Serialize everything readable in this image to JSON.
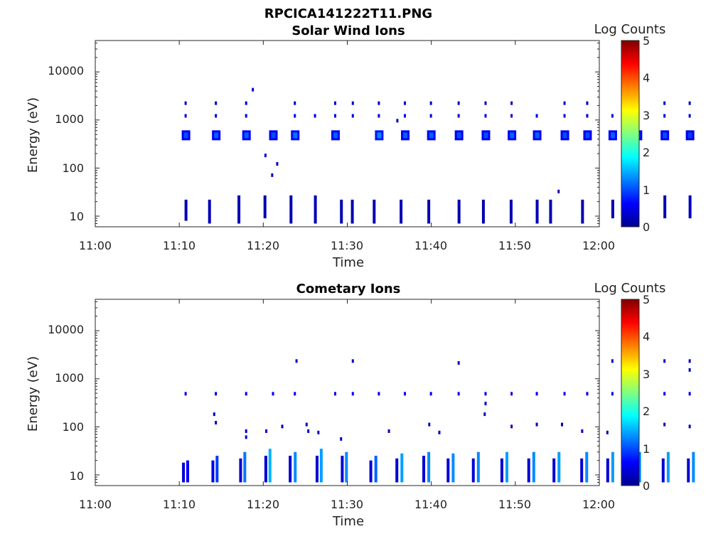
{
  "figure_title": "RPCICA141222T11.PNG",
  "colors": {
    "colormap": [
      "#00008f",
      "#0000ff",
      "#0080ff",
      "#00ffff",
      "#80ff80",
      "#ffff00",
      "#ff8000",
      "#ff0000",
      "#800000"
    ]
  },
  "chart_data": [
    {
      "type": "heatmap",
      "title": "Solar Wind Ions",
      "xlabel": "Time",
      "ylabel": "Energy (eV)",
      "x_ticks": [
        "11:00",
        "11:10",
        "11:20",
        "11:30",
        "11:40",
        "11:50",
        "12:00"
      ],
      "y_ticks": [
        "10",
        "100",
        "1000",
        "10000"
      ],
      "y_scale": "log",
      "y_range_eV": [
        6,
        45000
      ],
      "x_range": [
        "11:00",
        "12:00"
      ],
      "colorbar": {
        "label": "Log Counts",
        "ticks": [
          "0",
          "1",
          "2",
          "3",
          "4",
          "5"
        ],
        "range": [
          0,
          5
        ]
      },
      "blobs": [
        {
          "t": 10.8,
          "e": 480,
          "v": 1.0
        },
        {
          "t": 14.4,
          "e": 480,
          "v": 1.1
        },
        {
          "t": 18.0,
          "e": 480,
          "v": 1.1
        },
        {
          "t": 21.2,
          "e": 480,
          "v": 1.0
        },
        {
          "t": 23.8,
          "e": 480,
          "v": 1.2
        },
        {
          "t": 28.6,
          "e": 480,
          "v": 1.1
        },
        {
          "t": 33.8,
          "e": 480,
          "v": 1.3
        },
        {
          "t": 36.9,
          "e": 480,
          "v": 1.1
        },
        {
          "t": 40.0,
          "e": 480,
          "v": 1.1
        },
        {
          "t": 43.3,
          "e": 480,
          "v": 1.0
        },
        {
          "t": 46.5,
          "e": 480,
          "v": 1.0
        },
        {
          "t": 49.6,
          "e": 480,
          "v": 1.1
        },
        {
          "t": 52.6,
          "e": 480,
          "v": 1.1
        },
        {
          "t": 55.9,
          "e": 480,
          "v": 1.0
        },
        {
          "t": 58.6,
          "e": 480,
          "v": 1.0
        },
        {
          "t": 61.6,
          "e": 480,
          "v": 1.1
        },
        {
          "t": 64.6,
          "e": 480,
          "v": 1.0
        },
        {
          "t": 67.8,
          "e": 480,
          "v": 1.0
        },
        {
          "t": 70.8,
          "e": 480,
          "v": 0.9
        }
      ],
      "dots": [
        {
          "t": 10.8,
          "e": 1200,
          "v": 0.5
        },
        {
          "t": 14.4,
          "e": 1200,
          "v": 0.4
        },
        {
          "t": 18.0,
          "e": 1200,
          "v": 0.4
        },
        {
          "t": 23.8,
          "e": 1200,
          "v": 0.5
        },
        {
          "t": 26.2,
          "e": 1200,
          "v": 0.4
        },
        {
          "t": 28.6,
          "e": 1200,
          "v": 0.5
        },
        {
          "t": 30.7,
          "e": 1200,
          "v": 0.4
        },
        {
          "t": 33.8,
          "e": 1200,
          "v": 0.5
        },
        {
          "t": 36.9,
          "e": 1200,
          "v": 0.5
        },
        {
          "t": 40.0,
          "e": 1200,
          "v": 0.4
        },
        {
          "t": 43.3,
          "e": 1200,
          "v": 0.4
        },
        {
          "t": 46.5,
          "e": 1200,
          "v": 0.4
        },
        {
          "t": 49.6,
          "e": 1200,
          "v": 0.4
        },
        {
          "t": 52.6,
          "e": 1200,
          "v": 0.4
        },
        {
          "t": 55.9,
          "e": 1200,
          "v": 0.4
        },
        {
          "t": 58.6,
          "e": 1200,
          "v": 0.4
        },
        {
          "t": 61.6,
          "e": 1200,
          "v": 0.4
        },
        {
          "t": 64.6,
          "e": 1200,
          "v": 0.4
        },
        {
          "t": 67.8,
          "e": 1200,
          "v": 0.4
        },
        {
          "t": 70.8,
          "e": 1200,
          "v": 0.4
        },
        {
          "t": 10.8,
          "e": 2200,
          "v": 0.3
        },
        {
          "t": 14.4,
          "e": 2200,
          "v": 0.3
        },
        {
          "t": 18.0,
          "e": 2200,
          "v": 0.3
        },
        {
          "t": 23.8,
          "e": 2200,
          "v": 0.3
        },
        {
          "t": 28.6,
          "e": 2200,
          "v": 0.3
        },
        {
          "t": 30.7,
          "e": 2200,
          "v": 0.3
        },
        {
          "t": 33.8,
          "e": 2200,
          "v": 0.3
        },
        {
          "t": 36.9,
          "e": 2200,
          "v": 0.3
        },
        {
          "t": 40.0,
          "e": 2200,
          "v": 0.3
        },
        {
          "t": 43.3,
          "e": 2200,
          "v": 0.3
        },
        {
          "t": 46.5,
          "e": 2200,
          "v": 0.3
        },
        {
          "t": 49.6,
          "e": 2200,
          "v": 0.3
        },
        {
          "t": 55.9,
          "e": 2200,
          "v": 0.3
        },
        {
          "t": 58.6,
          "e": 2200,
          "v": 0.3
        },
        {
          "t": 64.6,
          "e": 2200,
          "v": 0.3
        },
        {
          "t": 67.8,
          "e": 2200,
          "v": 0.3
        },
        {
          "t": 70.8,
          "e": 2200,
          "v": 0.3
        },
        {
          "t": 18.8,
          "e": 4200,
          "v": 0.3
        },
        {
          "t": 20.3,
          "e": 180,
          "v": 0.3
        },
        {
          "t": 21.7,
          "e": 120,
          "v": 0.3
        },
        {
          "t": 21.1,
          "e": 70,
          "v": 0.3
        },
        {
          "t": 55.2,
          "e": 32,
          "v": 0.3
        },
        {
          "t": 36.0,
          "e": 950,
          "v": 0.3
        }
      ],
      "bars": [
        {
          "t": 10.8,
          "e1": 8,
          "e2": 22,
          "v": 0.2
        },
        {
          "t": 13.6,
          "e1": 7,
          "e2": 22,
          "v": 0.2
        },
        {
          "t": 17.1,
          "e1": 7,
          "e2": 27,
          "v": 0.2
        },
        {
          "t": 20.2,
          "e1": 9,
          "e2": 27,
          "v": 0.2
        },
        {
          "t": 23.3,
          "e1": 7,
          "e2": 27,
          "v": 0.2
        },
        {
          "t": 26.2,
          "e1": 7,
          "e2": 27,
          "v": 0.2
        },
        {
          "t": 29.3,
          "e1": 7,
          "e2": 22,
          "v": 0.2
        },
        {
          "t": 30.6,
          "e1": 7,
          "e2": 22,
          "v": 0.2
        },
        {
          "t": 33.2,
          "e1": 7,
          "e2": 22,
          "v": 0.2
        },
        {
          "t": 36.4,
          "e1": 7,
          "e2": 22,
          "v": 0.2
        },
        {
          "t": 39.7,
          "e1": 7,
          "e2": 22,
          "v": 0.2
        },
        {
          "t": 43.3,
          "e1": 7,
          "e2": 22,
          "v": 0.2
        },
        {
          "t": 46.2,
          "e1": 7,
          "e2": 22,
          "v": 0.2
        },
        {
          "t": 49.5,
          "e1": 7,
          "e2": 22,
          "v": 0.2
        },
        {
          "t": 52.6,
          "e1": 7,
          "e2": 22,
          "v": 0.2
        },
        {
          "t": 54.2,
          "e1": 7,
          "e2": 22,
          "v": 0.2
        },
        {
          "t": 58.0,
          "e1": 7,
          "e2": 22,
          "v": 0.2
        },
        {
          "t": 61.6,
          "e1": 9,
          "e2": 22,
          "v": 0.2
        },
        {
          "t": 64.6,
          "e1": 8,
          "e2": 27,
          "v": 0.2
        },
        {
          "t": 67.8,
          "e1": 9,
          "e2": 27,
          "v": 0.2
        },
        {
          "t": 70.8,
          "e1": 9,
          "e2": 27,
          "v": 0.3
        }
      ]
    },
    {
      "type": "heatmap",
      "title": "Cometary Ions",
      "xlabel": "Time",
      "ylabel": "Energy (eV)",
      "x_ticks": [
        "11:00",
        "11:10",
        "11:20",
        "11:30",
        "11:40",
        "11:50",
        "12:00"
      ],
      "y_ticks": [
        "10",
        "100",
        "1000",
        "10000"
      ],
      "y_scale": "log",
      "y_range_eV": [
        6,
        45000
      ],
      "x_range": [
        "11:00",
        "12:00"
      ],
      "colorbar": {
        "label": "Log Counts",
        "ticks": [
          "0",
          "1",
          "2",
          "3",
          "4",
          "5"
        ],
        "range": [
          0,
          5
        ]
      },
      "blobs": [],
      "dots": [
        {
          "t": 10.8,
          "e": 480,
          "v": 0.5
        },
        {
          "t": 14.4,
          "e": 480,
          "v": 0.5
        },
        {
          "t": 18.0,
          "e": 480,
          "v": 0.5
        },
        {
          "t": 21.2,
          "e": 480,
          "v": 0.5
        },
        {
          "t": 23.8,
          "e": 480,
          "v": 0.5
        },
        {
          "t": 28.6,
          "e": 480,
          "v": 0.5
        },
        {
          "t": 30.7,
          "e": 480,
          "v": 0.5
        },
        {
          "t": 33.8,
          "e": 480,
          "v": 0.5
        },
        {
          "t": 36.9,
          "e": 480,
          "v": 0.5
        },
        {
          "t": 40.0,
          "e": 480,
          "v": 0.5
        },
        {
          "t": 43.3,
          "e": 480,
          "v": 0.5
        },
        {
          "t": 46.5,
          "e": 480,
          "v": 0.5
        },
        {
          "t": 49.6,
          "e": 480,
          "v": 0.5
        },
        {
          "t": 52.6,
          "e": 480,
          "v": 0.5
        },
        {
          "t": 55.9,
          "e": 480,
          "v": 0.5
        },
        {
          "t": 58.6,
          "e": 480,
          "v": 0.5
        },
        {
          "t": 61.6,
          "e": 480,
          "v": 0.5
        },
        {
          "t": 64.6,
          "e": 480,
          "v": 0.5
        },
        {
          "t": 67.8,
          "e": 480,
          "v": 0.5
        },
        {
          "t": 70.8,
          "e": 480,
          "v": 0.5
        },
        {
          "t": 24.0,
          "e": 2300,
          "v": 0.3
        },
        {
          "t": 30.7,
          "e": 2300,
          "v": 0.3
        },
        {
          "t": 43.3,
          "e": 2100,
          "v": 0.3
        },
        {
          "t": 61.6,
          "e": 2300,
          "v": 0.3
        },
        {
          "t": 64.6,
          "e": 2300,
          "v": 0.3
        },
        {
          "t": 67.8,
          "e": 2300,
          "v": 0.3
        },
        {
          "t": 70.8,
          "e": 2300,
          "v": 0.3
        },
        {
          "t": 70.8,
          "e": 1500,
          "v": 0.3
        },
        {
          "t": 14.2,
          "e": 180,
          "v": 0.3
        },
        {
          "t": 14.4,
          "e": 120,
          "v": 0.3
        },
        {
          "t": 18.0,
          "e": 80,
          "v": 0.3
        },
        {
          "t": 18.0,
          "e": 60,
          "v": 0.3
        },
        {
          "t": 20.4,
          "e": 80,
          "v": 0.3
        },
        {
          "t": 22.3,
          "e": 100,
          "v": 0.3
        },
        {
          "t": 25.2,
          "e": 110,
          "v": 0.3
        },
        {
          "t": 25.4,
          "e": 80,
          "v": 0.3
        },
        {
          "t": 26.6,
          "e": 75,
          "v": 0.3
        },
        {
          "t": 29.3,
          "e": 55,
          "v": 0.3
        },
        {
          "t": 35.0,
          "e": 80,
          "v": 0.3
        },
        {
          "t": 39.8,
          "e": 110,
          "v": 0.3
        },
        {
          "t": 41.0,
          "e": 75,
          "v": 0.3
        },
        {
          "t": 46.5,
          "e": 300,
          "v": 0.3
        },
        {
          "t": 46.4,
          "e": 180,
          "v": 0.3
        },
        {
          "t": 49.6,
          "e": 100,
          "v": 0.3
        },
        {
          "t": 52.6,
          "e": 110,
          "v": 0.3
        },
        {
          "t": 55.6,
          "e": 110,
          "v": 0.3
        },
        {
          "t": 58.0,
          "e": 80,
          "v": 0.3
        },
        {
          "t": 61.0,
          "e": 75,
          "v": 0.3
        },
        {
          "t": 64.0,
          "e": 100,
          "v": 0.3
        },
        {
          "t": 67.8,
          "e": 110,
          "v": 0.3
        },
        {
          "t": 70.8,
          "e": 100,
          "v": 0.3
        }
      ],
      "bars": [
        {
          "t": 10.5,
          "e1": 7,
          "e2": 18,
          "v": 0.4
        },
        {
          "t": 11.0,
          "e1": 7,
          "e2": 20,
          "v": 0.6
        },
        {
          "t": 14.0,
          "e1": 7,
          "e2": 20,
          "v": 0.5
        },
        {
          "t": 14.5,
          "e1": 7,
          "e2": 25,
          "v": 0.9
        },
        {
          "t": 17.3,
          "e1": 7,
          "e2": 22,
          "v": 0.4
        },
        {
          "t": 17.8,
          "e1": 7,
          "e2": 30,
          "v": 1.2
        },
        {
          "t": 20.3,
          "e1": 7,
          "e2": 25,
          "v": 0.4
        },
        {
          "t": 20.8,
          "e1": 7,
          "e2": 35,
          "v": 1.5
        },
        {
          "t": 23.2,
          "e1": 7,
          "e2": 25,
          "v": 0.4
        },
        {
          "t": 23.8,
          "e1": 7,
          "e2": 30,
          "v": 1.3
        },
        {
          "t": 26.4,
          "e1": 7,
          "e2": 25,
          "v": 0.4
        },
        {
          "t": 26.9,
          "e1": 7,
          "e2": 35,
          "v": 1.4
        },
        {
          "t": 29.4,
          "e1": 7,
          "e2": 25,
          "v": 0.4
        },
        {
          "t": 29.9,
          "e1": 7,
          "e2": 30,
          "v": 1.3
        },
        {
          "t": 32.8,
          "e1": 7,
          "e2": 20,
          "v": 0.4
        },
        {
          "t": 33.4,
          "e1": 7,
          "e2": 25,
          "v": 1.1
        },
        {
          "t": 35.9,
          "e1": 7,
          "e2": 22,
          "v": 0.4
        },
        {
          "t": 36.5,
          "e1": 7,
          "e2": 28,
          "v": 1.4
        },
        {
          "t": 39.1,
          "e1": 7,
          "e2": 25,
          "v": 0.4
        },
        {
          "t": 39.7,
          "e1": 7,
          "e2": 30,
          "v": 1.3
        },
        {
          "t": 42.0,
          "e1": 7,
          "e2": 22,
          "v": 0.4
        },
        {
          "t": 42.6,
          "e1": 7,
          "e2": 28,
          "v": 1.3
        },
        {
          "t": 45.0,
          "e1": 7,
          "e2": 22,
          "v": 0.4
        },
        {
          "t": 45.6,
          "e1": 7,
          "e2": 30,
          "v": 1.3
        },
        {
          "t": 48.4,
          "e1": 7,
          "e2": 22,
          "v": 0.4
        },
        {
          "t": 49.0,
          "e1": 7,
          "e2": 30,
          "v": 1.4
        },
        {
          "t": 51.6,
          "e1": 7,
          "e2": 22,
          "v": 0.4
        },
        {
          "t": 52.2,
          "e1": 7,
          "e2": 30,
          "v": 1.3
        },
        {
          "t": 54.6,
          "e1": 7,
          "e2": 22,
          "v": 0.4
        },
        {
          "t": 55.2,
          "e1": 7,
          "e2": 30,
          "v": 1.4
        },
        {
          "t": 57.9,
          "e1": 7,
          "e2": 22,
          "v": 0.4
        },
        {
          "t": 58.5,
          "e1": 7,
          "e2": 30,
          "v": 1.3
        },
        {
          "t": 61.0,
          "e1": 7,
          "e2": 22,
          "v": 0.4
        },
        {
          "t": 61.6,
          "e1": 7,
          "e2": 30,
          "v": 1.4
        },
        {
          "t": 64.2,
          "e1": 7,
          "e2": 22,
          "v": 0.4
        },
        {
          "t": 64.8,
          "e1": 7,
          "e2": 30,
          "v": 1.3
        },
        {
          "t": 67.6,
          "e1": 7,
          "e2": 22,
          "v": 0.4
        },
        {
          "t": 68.2,
          "e1": 7,
          "e2": 30,
          "v": 1.4
        },
        {
          "t": 70.6,
          "e1": 7,
          "e2": 22,
          "v": 0.4
        },
        {
          "t": 71.2,
          "e1": 7,
          "e2": 30,
          "v": 1.3
        }
      ]
    }
  ]
}
